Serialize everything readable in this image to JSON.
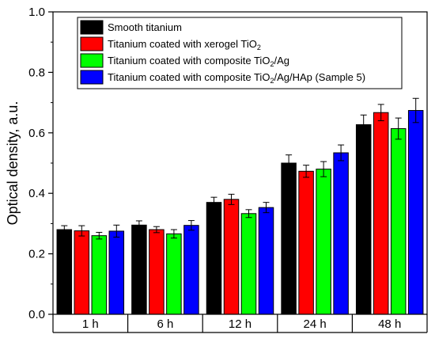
{
  "chart_data": {
    "type": "bar",
    "title": "",
    "xlabel": "",
    "ylabel": "Optical density, a.u.",
    "ylim": [
      0.0,
      1.0
    ],
    "yticks": [
      "0.0",
      "0.2",
      "0.4",
      "0.6",
      "0.8",
      "1.0"
    ],
    "categories": [
      "1 h",
      "6 h",
      "12 h",
      "24 h",
      "48 h"
    ],
    "legend_position": "top-left",
    "error_bars": true,
    "series": [
      {
        "name": "Smooth titanium",
        "color": "#000000",
        "values": [
          0.28,
          0.295,
          0.37,
          0.5,
          0.627
        ],
        "errors": [
          0.013,
          0.014,
          0.017,
          0.027,
          0.032
        ]
      },
      {
        "name": "Titanium coated with xerogel TiO2",
        "label_parts": [
          "Titanium coated with xerogel TiO",
          "2",
          ""
        ],
        "color": "#ff0000",
        "values": [
          0.276,
          0.28,
          0.38,
          0.473,
          0.667
        ],
        "errors": [
          0.017,
          0.01,
          0.017,
          0.02,
          0.027
        ]
      },
      {
        "name": "Titanium coated with composite TiO2/Ag",
        "label_parts": [
          "Titanium coated with composite TiO",
          "2",
          "/Ag"
        ],
        "color": "#00ff00",
        "values": [
          0.26,
          0.266,
          0.333,
          0.48,
          0.614
        ],
        "errors": [
          0.011,
          0.014,
          0.013,
          0.025,
          0.035
        ]
      },
      {
        "name": "Titanium coated with composite TiO2/Ag/HAp (Sample 5)",
        "label_parts": [
          "Titanium coated with composite TiO",
          "2",
          "/Ag/HAp (Sample 5)"
        ],
        "color": "#0000ff",
        "values": [
          0.275,
          0.294,
          0.353,
          0.534,
          0.674
        ],
        "errors": [
          0.02,
          0.016,
          0.017,
          0.026,
          0.04
        ]
      }
    ]
  }
}
